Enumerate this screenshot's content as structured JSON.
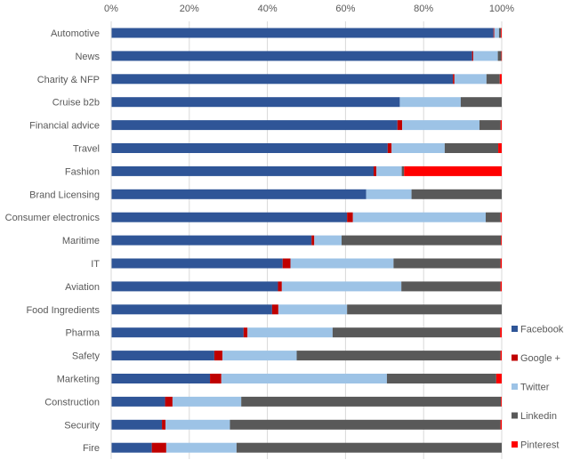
{
  "chart_data": {
    "type": "bar",
    "orientation": "horizontal",
    "stacked": "percent",
    "title": "",
    "xlabel": "",
    "ylabel": "",
    "xlim": [
      0,
      100
    ],
    "x_ticks": [
      "0%",
      "20%",
      "40%",
      "60%",
      "80%",
      "100%"
    ],
    "x_tick_values": [
      0,
      20,
      40,
      60,
      80,
      100
    ],
    "grid": true,
    "legend_position": "bottom-right",
    "categories": [
      "Automotive",
      "News",
      "Charity & NFP",
      "Cruise b2b",
      "Financial advice",
      "Travel",
      "Fashion",
      "Brand Licensing",
      "Consumer electronics",
      "Maritime",
      "IT",
      "Aviation",
      "Food Ingredients",
      "Pharma",
      "Safety",
      "Marketing",
      "Construction",
      "Security",
      "Fire"
    ],
    "series": [
      {
        "name": "Facebook",
        "color": "#2F5597",
        "values": [
          97.9,
          92.4,
          87.5,
          73.9,
          73.3,
          70.8,
          67.2,
          65.3,
          60.4,
          51.3,
          43.9,
          42.7,
          41.2,
          33.9,
          26.4,
          25.3,
          13.8,
          13.0,
          10.4
        ]
      },
      {
        "name": "Google +",
        "color": "#C00000",
        "values": [
          0.2,
          0.3,
          0.4,
          0,
          1.2,
          1.0,
          0.7,
          0,
          1.5,
          0.7,
          2.0,
          1.0,
          1.6,
          1.0,
          2.1,
          2.9,
          1.9,
          0.9,
          3.7
        ]
      },
      {
        "name": "Twitter",
        "color": "#9DC3E6",
        "values": [
          1.2,
          6.3,
          8.2,
          15.6,
          19.8,
          13.6,
          6.5,
          11.6,
          34.0,
          7.0,
          26.4,
          30.6,
          17.6,
          21.8,
          19.0,
          42.4,
          17.6,
          16.5,
          18.0
        ]
      },
      {
        "name": "Linkedin",
        "color": "#595959",
        "values": [
          0.5,
          0.9,
          3.4,
          10.5,
          5.4,
          13.7,
          0.6,
          23.1,
          3.8,
          40.8,
          27.4,
          25.4,
          39.6,
          42.9,
          52.2,
          28.0,
          66.5,
          69.3,
          67.9
        ]
      },
      {
        "name": "Pinterest",
        "color": "#FF0000",
        "values": [
          0.2,
          0.1,
          0.5,
          0,
          0.3,
          0.9,
          25.0,
          0,
          0.3,
          0.2,
          0.3,
          0.3,
          0,
          0.4,
          0.3,
          1.4,
          0.2,
          0.3,
          0
        ]
      }
    ]
  }
}
